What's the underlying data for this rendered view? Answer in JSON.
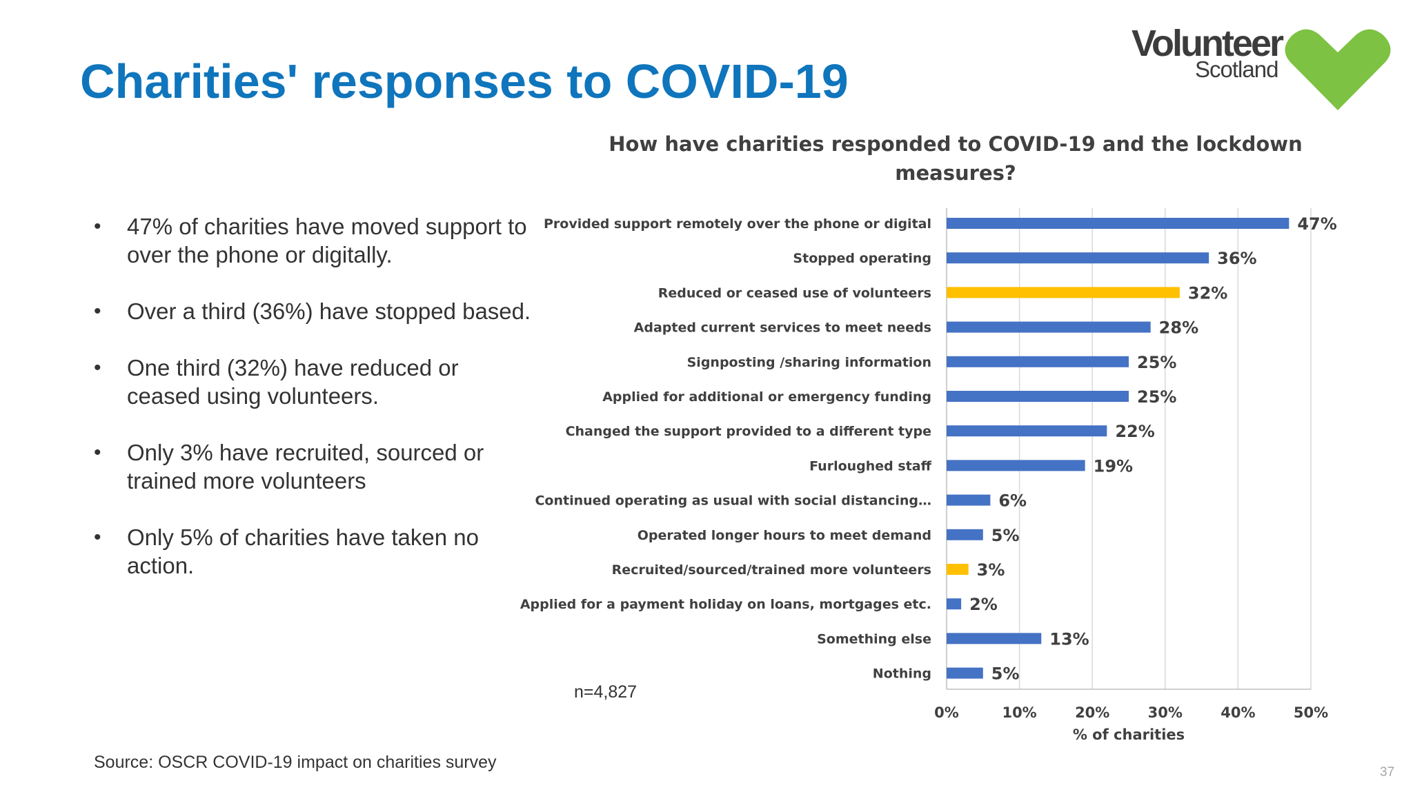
{
  "slide": {
    "title": "Charities' responses to COVID-19",
    "page_number": "37",
    "source": "Source: OSCR COVID-19 impact on charities survey",
    "sample_note": "n=4,827"
  },
  "logo": {
    "word_main": "Volunteer",
    "word_sub": "Scotland",
    "heart_color": "#7dc242"
  },
  "bullets": [
    "47% of charities have moved support to over the phone or digitally.",
    "Over a third (36%) have stopped based.",
    "One third (32%) have reduced or ceased using volunteers.",
    "Only 3% have recruited, sourced or trained more volunteers",
    "Only 5% of charities have taken no action."
  ],
  "chart_data": {
    "type": "bar",
    "orientation": "horizontal",
    "title": "How have charities responded to COVID-19 and the lockdown measures?",
    "xlabel": "% of charities",
    "ylabel": "",
    "xlim": [
      0,
      50
    ],
    "x_ticks": [
      "0%",
      "10%",
      "20%",
      "30%",
      "40%",
      "50%"
    ],
    "grid": true,
    "categories": [
      "Provided support remotely over the phone or digital",
      "Stopped operating",
      "Reduced or ceased use of volunteers",
      "Adapted current services to meet needs",
      "Signposting /sharing information",
      "Applied for additional or emergency funding",
      "Changed the support provided to a different type",
      "Furloughed staff",
      "Continued operating as usual with social distancing…",
      "Operated longer hours to meet demand",
      "Recruited/sourced/trained more volunteers",
      "Applied for a payment holiday on loans, mortgages etc.",
      "Something else",
      "Nothing"
    ],
    "values": [
      47,
      36,
      32,
      28,
      25,
      25,
      22,
      19,
      6,
      5,
      3,
      2,
      13,
      5
    ],
    "value_labels": [
      "47%",
      "36%",
      "32%",
      "28%",
      "25%",
      "25%",
      "22%",
      "19%",
      "6%",
      "5%",
      "3%",
      "2%",
      "13%",
      "5%"
    ],
    "highlighted": [
      false,
      false,
      true,
      false,
      false,
      false,
      false,
      false,
      false,
      false,
      true,
      false,
      false,
      false
    ],
    "colors": {
      "bar": "#4472c4",
      "highlight": "#ffc000",
      "grid": "#d9d9d9",
      "text": "#404040"
    }
  }
}
